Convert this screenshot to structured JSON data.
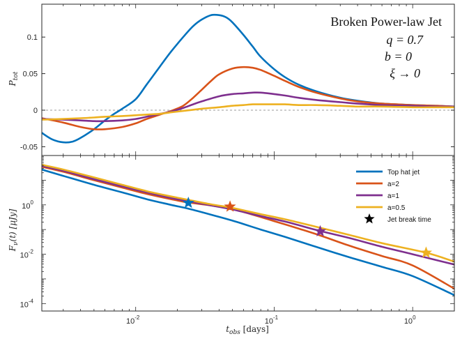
{
  "chart_data": [
    {
      "type": "line",
      "panel": "top",
      "ylabel": "P_tot",
      "xscale": "log",
      "xlim": [
        0.0021,
        2.0
      ],
      "ylim": [
        -0.062,
        0.145
      ],
      "yticks": [
        -0.05,
        0,
        0.05,
        0.1
      ],
      "ytick_labels": [
        "-0.05",
        "0",
        "0.05",
        "0.1"
      ],
      "zero_line": "dashed",
      "annotations": [
        "Broken Power-law Jet",
        "q = 0.7",
        "b = 0",
        "ξ → 0"
      ],
      "series": [
        {
          "name": "Top hat jet",
          "color": "#0072BD",
          "x": [
            0.0021,
            0.0025,
            0.003,
            0.0035,
            0.004,
            0.005,
            0.006,
            0.007,
            0.008,
            0.01,
            0.012,
            0.015,
            0.018,
            0.022,
            0.026,
            0.03,
            0.035,
            0.04,
            0.045,
            0.05,
            0.06,
            0.07,
            0.08,
            0.1,
            0.12,
            0.15,
            0.2,
            0.3,
            0.4,
            0.6,
            1.0,
            1.5,
            2.0
          ],
          "y": [
            -0.031,
            -0.04,
            -0.044,
            -0.043,
            -0.038,
            -0.026,
            -0.014,
            -0.005,
            0.002,
            0.015,
            0.035,
            0.06,
            0.08,
            0.1,
            0.115,
            0.124,
            0.13,
            0.13,
            0.127,
            0.12,
            0.103,
            0.087,
            0.073,
            0.056,
            0.045,
            0.035,
            0.026,
            0.017,
            0.013,
            0.009,
            0.007,
            0.006,
            0.005
          ]
        },
        {
          "name": "a=2",
          "color": "#D95319",
          "x": [
            0.0021,
            0.003,
            0.004,
            0.005,
            0.006,
            0.008,
            0.01,
            0.012,
            0.015,
            0.018,
            0.022,
            0.026,
            0.03,
            0.035,
            0.04,
            0.05,
            0.06,
            0.07,
            0.08,
            0.1,
            0.12,
            0.15,
            0.2,
            0.3,
            0.4,
            0.6,
            1.0,
            1.5,
            2.0
          ],
          "y": [
            -0.011,
            -0.017,
            -0.023,
            -0.026,
            -0.026,
            -0.023,
            -0.018,
            -0.012,
            -0.006,
            -0.001,
            0.006,
            0.017,
            0.028,
            0.04,
            0.049,
            0.057,
            0.059,
            0.058,
            0.055,
            0.047,
            0.04,
            0.032,
            0.024,
            0.016,
            0.012,
            0.009,
            0.007,
            0.006,
            0.005
          ]
        },
        {
          "name": "a=1",
          "color": "#7E2F8E",
          "x": [
            0.0021,
            0.003,
            0.004,
            0.005,
            0.006,
            0.008,
            0.01,
            0.012,
            0.015,
            0.018,
            0.022,
            0.026,
            0.03,
            0.04,
            0.05,
            0.06,
            0.07,
            0.08,
            0.1,
            0.12,
            0.15,
            0.2,
            0.3,
            0.4,
            0.6,
            1.0,
            1.5,
            2.0
          ],
          "y": [
            -0.012,
            -0.013,
            -0.014,
            -0.015,
            -0.015,
            -0.014,
            -0.012,
            -0.009,
            -0.005,
            -0.002,
            0.003,
            0.008,
            0.012,
            0.019,
            0.022,
            0.023,
            0.024,
            0.024,
            0.022,
            0.02,
            0.017,
            0.014,
            0.011,
            0.009,
            0.007,
            0.006,
            0.005,
            0.005
          ]
        },
        {
          "name": "a=0.5",
          "color": "#EDB120",
          "x": [
            0.0021,
            0.003,
            0.004,
            0.005,
            0.006,
            0.008,
            0.01,
            0.012,
            0.015,
            0.018,
            0.022,
            0.03,
            0.04,
            0.05,
            0.06,
            0.07,
            0.08,
            0.1,
            0.12,
            0.15,
            0.2,
            0.3,
            0.4,
            0.6,
            1.0,
            1.5,
            2.0
          ],
          "y": [
            -0.013,
            -0.012,
            -0.011,
            -0.01,
            -0.009,
            -0.008,
            -0.007,
            -0.006,
            -0.005,
            -0.003,
            -0.001,
            0.002,
            0.004,
            0.006,
            0.007,
            0.008,
            0.008,
            0.008,
            0.008,
            0.007,
            0.007,
            0.006,
            0.005,
            0.005,
            0.004,
            0.004,
            0.004
          ]
        }
      ]
    },
    {
      "type": "line",
      "panel": "bottom",
      "xlabel": "t_obs [days]",
      "ylabel": "F_ν(t) [μJy]",
      "xscale": "log",
      "yscale": "log",
      "xlim": [
        0.0021,
        2.0
      ],
      "ylim": [
        5e-05,
        100
      ],
      "xticks": [
        0.01,
        0.1,
        1
      ],
      "xtick_labels": [
        [
          "10",
          "-2"
        ],
        [
          "10",
          "-1"
        ],
        [
          "10",
          "0"
        ]
      ],
      "yticks": [
        0.0001,
        0.01,
        1
      ],
      "ytick_labels": [
        [
          "10",
          "-4"
        ],
        [
          "10",
          "-2"
        ],
        [
          "10",
          "0"
        ]
      ],
      "legend_position": "top-right",
      "legend_extra": "Jet break time",
      "series": [
        {
          "name": "Top hat jet",
          "color": "#0072BD",
          "x": [
            0.0021,
            0.003,
            0.005,
            0.008,
            0.012,
            0.018,
            0.024,
            0.035,
            0.05,
            0.08,
            0.12,
            0.2,
            0.35,
            0.6,
            1.0,
            2.0
          ],
          "y": [
            27,
            15,
            6.5,
            3.2,
            1.7,
            1.0,
            0.7,
            0.4,
            0.23,
            0.1,
            0.05,
            0.02,
            0.0075,
            0.0031,
            0.0013,
            0.00022
          ],
          "jet_break": {
            "x": 0.024,
            "y": 1.2
          }
        },
        {
          "name": "a=2",
          "color": "#D95319",
          "x": [
            0.0021,
            0.003,
            0.005,
            0.008,
            0.012,
            0.018,
            0.024,
            0.035,
            0.048,
            0.07,
            0.1,
            0.15,
            0.22,
            0.35,
            0.6,
            1.0,
            2.0
          ],
          "y": [
            35,
            22,
            10,
            5.0,
            2.8,
            1.7,
            1.25,
            0.95,
            0.72,
            0.4,
            0.22,
            0.11,
            0.055,
            0.022,
            0.0085,
            0.0035,
            0.0004
          ],
          "jet_break": {
            "x": 0.048,
            "y": 0.85
          }
        },
        {
          "name": "a=1",
          "color": "#7E2F8E",
          "x": [
            0.0021,
            0.003,
            0.005,
            0.008,
            0.012,
            0.018,
            0.024,
            0.035,
            0.05,
            0.08,
            0.12,
            0.21,
            0.35,
            0.6,
            1.0,
            2.0
          ],
          "y": [
            38,
            24,
            11,
            5.6,
            3.2,
            1.9,
            1.4,
            0.95,
            0.65,
            0.35,
            0.21,
            0.09,
            0.045,
            0.02,
            0.01,
            0.0038
          ],
          "jet_break": {
            "x": 0.215,
            "y": 0.085
          }
        },
        {
          "name": "a=0.5",
          "color": "#EDB120",
          "x": [
            0.0021,
            0.003,
            0.005,
            0.008,
            0.012,
            0.018,
            0.024,
            0.035,
            0.05,
            0.08,
            0.12,
            0.2,
            0.35,
            0.6,
            1.25,
            2.0
          ],
          "y": [
            42,
            27,
            13,
            6.5,
            3.6,
            2.2,
            1.6,
            1.05,
            0.75,
            0.42,
            0.26,
            0.13,
            0.06,
            0.028,
            0.0115,
            0.005
          ],
          "jet_break": {
            "x": 1.25,
            "y": 0.0115
          }
        }
      ]
    }
  ]
}
